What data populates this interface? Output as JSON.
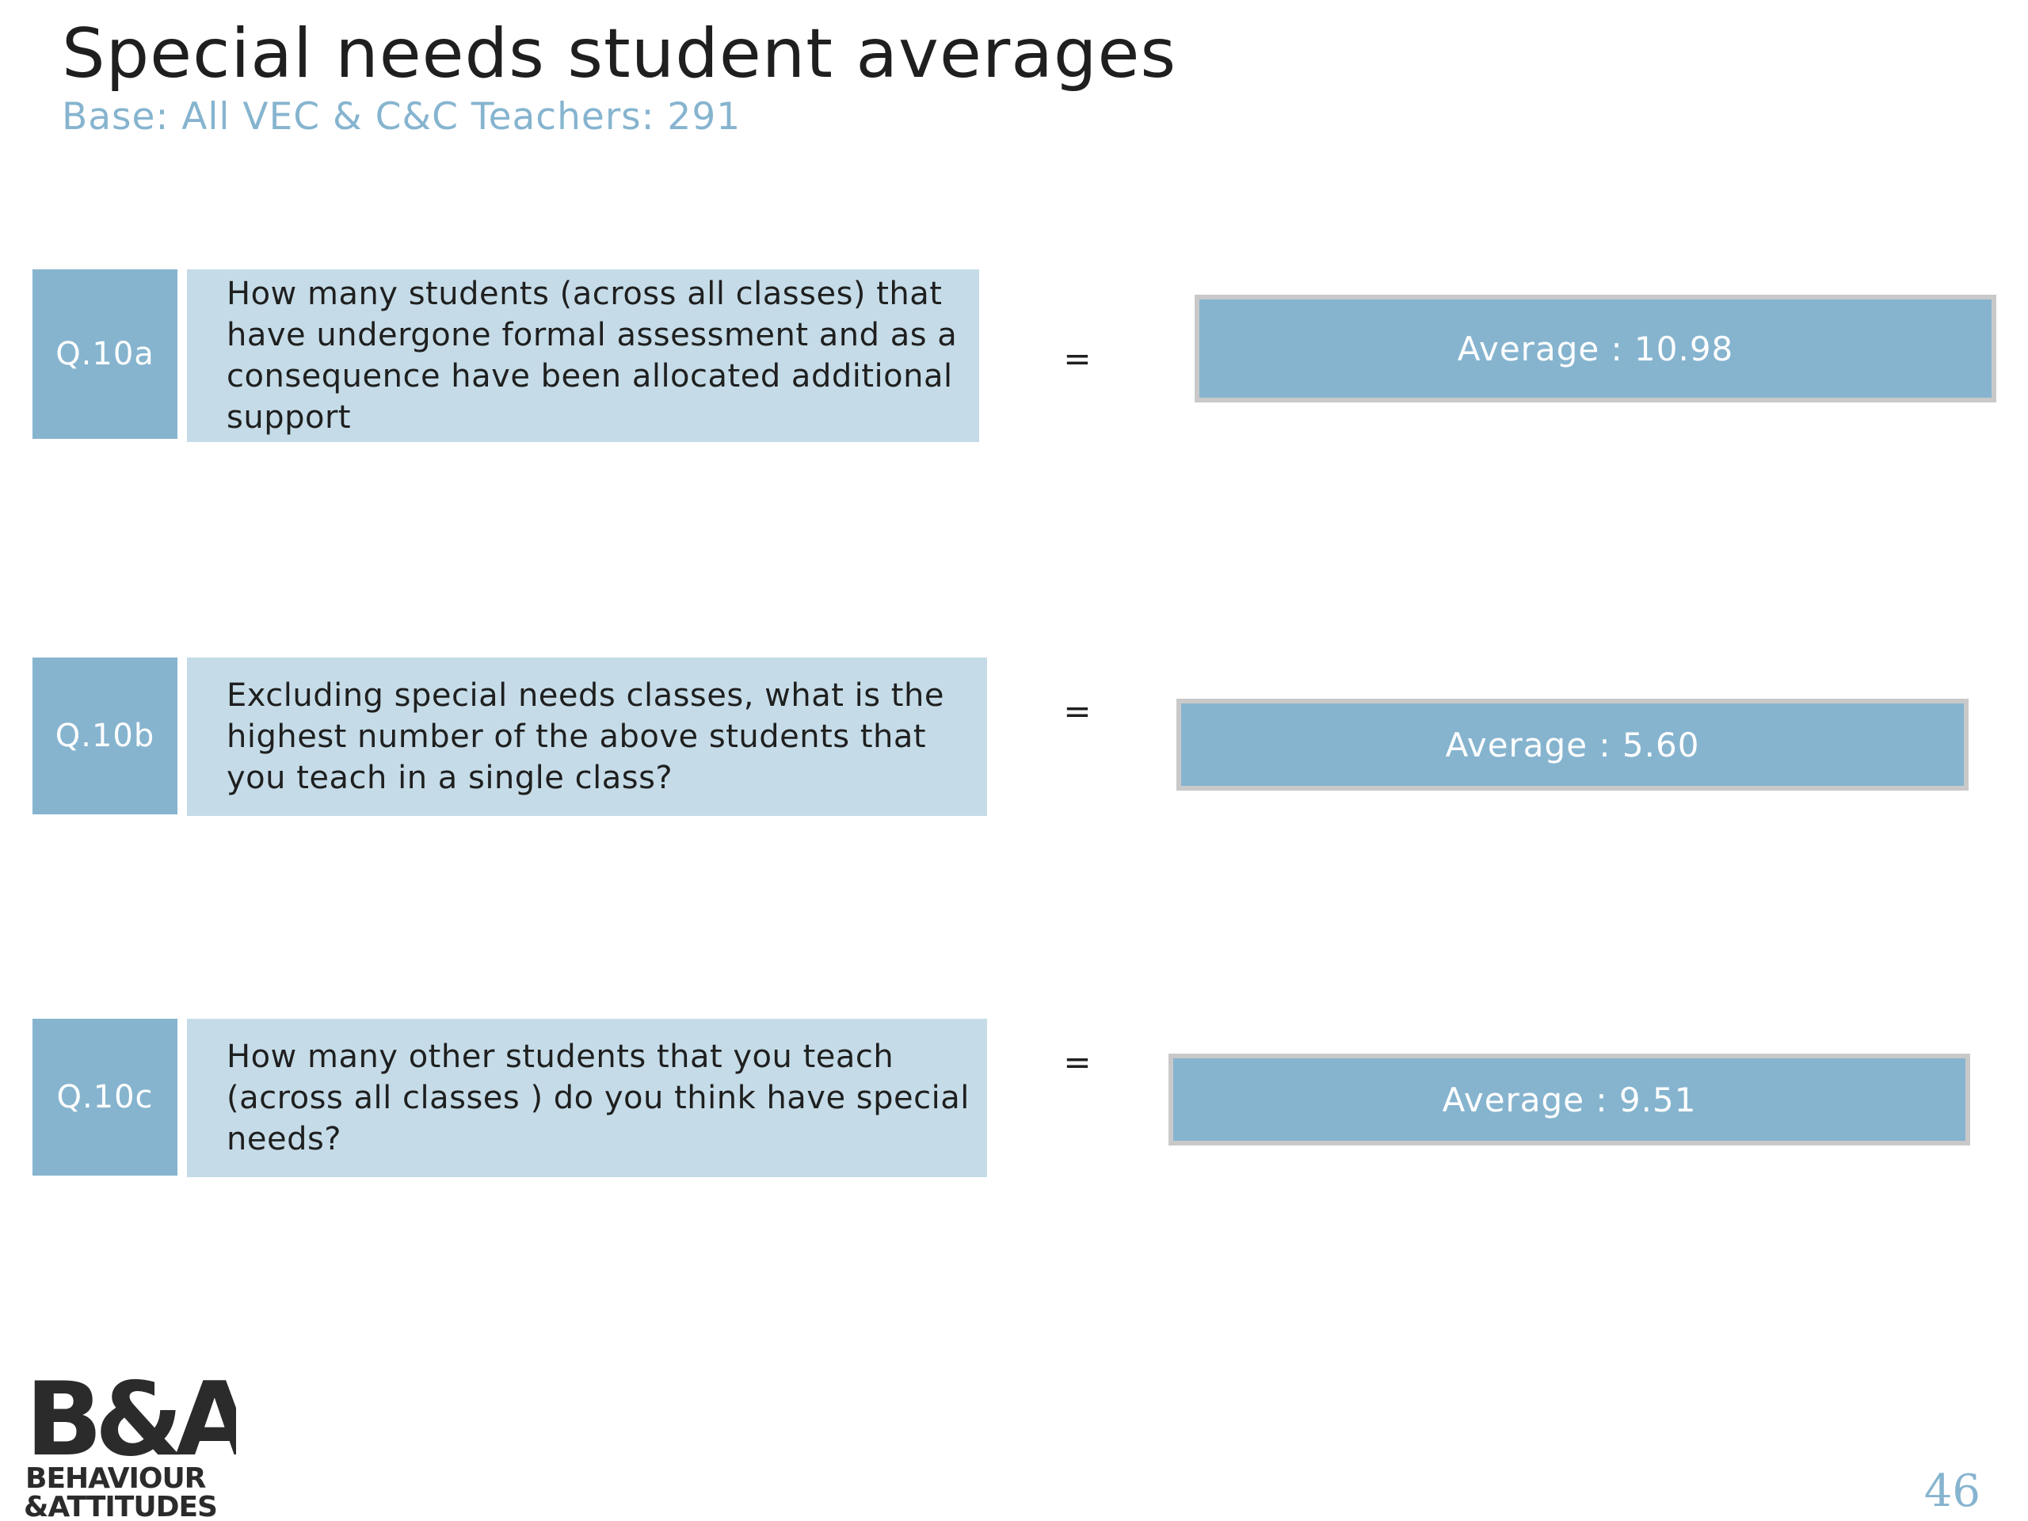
{
  "header": {
    "title": "Special needs student averages",
    "subtitle": "Base: All VEC & C&C Teachers: 291"
  },
  "questions": [
    {
      "code": "Q.10a",
      "text": "How many students (across all classes) that have undergone formal assessment and as a consequence have been allocated additional support",
      "equals": "=",
      "average": "Average : 10.98"
    },
    {
      "code": "Q.10b",
      "text": "Excluding special needs classes, what is the highest number of the above students that you teach in a single class?",
      "equals": "=",
      "average": "Average : 5.60"
    },
    {
      "code": "Q.10c",
      "text": "How many other students that you teach (across all classes ) do you think have special needs?",
      "equals": "=",
      "average": "Average : 9.51"
    }
  ],
  "logo": {
    "monogram": "B&A",
    "line1": "BEHAVIOUR",
    "line2": "&ATTITUDES"
  },
  "footer": {
    "page_number": "46"
  },
  "colors": {
    "accent": "#86b4cf",
    "light_accent": "#c5dce8",
    "title_text": "#1f1f1f"
  }
}
